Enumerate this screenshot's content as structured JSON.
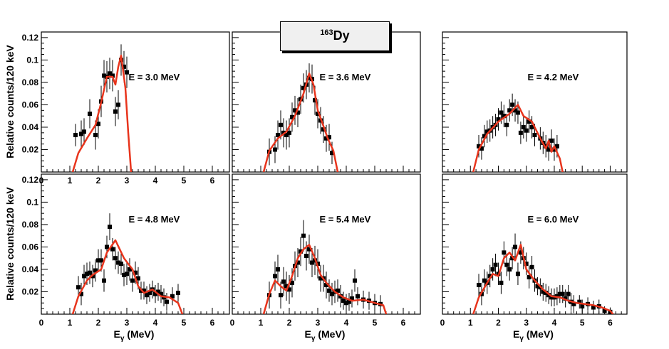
{
  "figure": {
    "nucleus": {
      "mass": "163",
      "symbol": "Dy"
    },
    "ylabel": "Relative counts/120 keV",
    "xlabel_main": "E",
    "xlabel_sub": "γ",
    "xlabel_unit": " (MeV)",
    "colors": {
      "model": "#e8341c",
      "data": "#000000",
      "frame": "#000000"
    }
  },
  "chart_data": [
    {
      "type": "scatter",
      "panel": "top-left",
      "label": "E = 3.0 MeV",
      "xlim": [
        0,
        6.6
      ],
      "ylim": [
        0,
        0.125
      ],
      "xticks": [
        "0",
        "1",
        "2",
        "3",
        "4",
        "5",
        "6"
      ],
      "yticks": [
        "0.02",
        "0.04",
        "0.06",
        "0.08",
        "0.1",
        "0.12"
      ],
      "points": [
        [
          1.2,
          0.033
        ],
        [
          1.4,
          0.034
        ],
        [
          1.5,
          0.036
        ],
        [
          1.7,
          0.052
        ],
        [
          1.9,
          0.033
        ],
        [
          2.0,
          0.043
        ],
        [
          2.1,
          0.063
        ],
        [
          2.2,
          0.086
        ],
        [
          2.3,
          0.085
        ],
        [
          2.4,
          0.088
        ],
        [
          2.5,
          0.086
        ],
        [
          2.6,
          0.054
        ],
        [
          2.7,
          0.06
        ],
        [
          2.8,
          0.1
        ],
        [
          2.9,
          0.094
        ],
        [
          3.0,
          0.089
        ]
      ],
      "errors": [
        0.01,
        0.012,
        0.012,
        0.013,
        0.013,
        0.013,
        0.014,
        0.014,
        0.014,
        0.014,
        0.014,
        0.013,
        0.013,
        0.014,
        0.014,
        0.014
      ],
      "model": [
        [
          1.1,
          0.0
        ],
        [
          1.3,
          0.017
        ],
        [
          1.6,
          0.03
        ],
        [
          1.9,
          0.042
        ],
        [
          2.1,
          0.062
        ],
        [
          2.3,
          0.085
        ],
        [
          2.5,
          0.085
        ],
        [
          2.6,
          0.078
        ],
        [
          2.7,
          0.094
        ],
        [
          2.8,
          0.104
        ],
        [
          2.95,
          0.075
        ],
        [
          3.05,
          0.035
        ],
        [
          3.15,
          0.0
        ]
      ]
    },
    {
      "type": "scatter",
      "panel": "top-middle",
      "label": "E = 3.6 MeV",
      "xlim": [
        0,
        6.6
      ],
      "ylim": [
        0,
        0.125
      ],
      "xticks": [],
      "yticks": [],
      "points": [
        [
          1.3,
          0.018
        ],
        [
          1.5,
          0.02
        ],
        [
          1.6,
          0.033
        ],
        [
          1.7,
          0.042
        ],
        [
          1.8,
          0.035
        ],
        [
          1.9,
          0.033
        ],
        [
          2.0,
          0.035
        ],
        [
          2.1,
          0.049
        ],
        [
          2.2,
          0.055
        ],
        [
          2.3,
          0.053
        ],
        [
          2.4,
          0.065
        ],
        [
          2.5,
          0.075
        ],
        [
          2.6,
          0.078
        ],
        [
          2.7,
          0.084
        ],
        [
          2.8,
          0.083
        ],
        [
          2.9,
          0.064
        ],
        [
          3.0,
          0.052
        ],
        [
          3.1,
          0.046
        ],
        [
          3.2,
          0.038
        ],
        [
          3.3,
          0.03
        ],
        [
          3.4,
          0.031
        ],
        [
          3.5,
          0.017
        ]
      ],
      "errors": [
        0.012,
        0.012,
        0.013,
        0.013,
        0.013,
        0.013,
        0.013,
        0.013,
        0.013,
        0.013,
        0.013,
        0.013,
        0.013,
        0.013,
        0.013,
        0.013,
        0.013,
        0.012,
        0.012,
        0.012,
        0.012,
        0.01
      ],
      "model": [
        [
          1.1,
          0.0
        ],
        [
          1.3,
          0.019
        ],
        [
          1.6,
          0.03
        ],
        [
          1.9,
          0.036
        ],
        [
          2.2,
          0.05
        ],
        [
          2.5,
          0.07
        ],
        [
          2.7,
          0.088
        ],
        [
          2.85,
          0.078
        ],
        [
          3.0,
          0.055
        ],
        [
          3.2,
          0.041
        ],
        [
          3.35,
          0.03
        ],
        [
          3.55,
          0.019
        ],
        [
          3.7,
          0.0
        ]
      ]
    },
    {
      "type": "scatter",
      "panel": "top-right",
      "label": "E = 4.2 MeV",
      "xlim": [
        0,
        6.6
      ],
      "ylim": [
        0,
        0.125
      ],
      "xticks": [],
      "yticks": [],
      "points": [
        [
          1.3,
          0.023
        ],
        [
          1.4,
          0.021
        ],
        [
          1.5,
          0.032
        ],
        [
          1.6,
          0.036
        ],
        [
          1.7,
          0.037
        ],
        [
          1.8,
          0.04
        ],
        [
          1.9,
          0.042
        ],
        [
          2.0,
          0.047
        ],
        [
          2.1,
          0.053
        ],
        [
          2.2,
          0.05
        ],
        [
          2.3,
          0.042
        ],
        [
          2.4,
          0.055
        ],
        [
          2.5,
          0.06
        ],
        [
          2.6,
          0.055
        ],
        [
          2.7,
          0.053
        ],
        [
          2.8,
          0.035
        ],
        [
          2.9,
          0.04
        ],
        [
          3.0,
          0.037
        ],
        [
          3.1,
          0.045
        ],
        [
          3.2,
          0.04
        ],
        [
          3.3,
          0.033
        ],
        [
          3.5,
          0.03
        ],
        [
          3.6,
          0.026
        ],
        [
          3.7,
          0.023
        ],
        [
          3.8,
          0.02
        ],
        [
          3.9,
          0.028
        ],
        [
          4.0,
          0.02
        ],
        [
          4.1,
          0.023
        ]
      ],
      "errors": [
        0.01,
        0.01,
        0.01,
        0.01,
        0.01,
        0.01,
        0.01,
        0.01,
        0.01,
        0.01,
        0.01,
        0.01,
        0.01,
        0.01,
        0.01,
        0.01,
        0.01,
        0.01,
        0.01,
        0.01,
        0.01,
        0.01,
        0.01,
        0.01,
        0.01,
        0.01,
        0.01,
        0.01
      ],
      "model": [
        [
          1.1,
          0.0
        ],
        [
          1.3,
          0.02
        ],
        [
          1.6,
          0.034
        ],
        [
          2.0,
          0.045
        ],
        [
          2.4,
          0.052
        ],
        [
          2.7,
          0.06
        ],
        [
          2.9,
          0.05
        ],
        [
          3.2,
          0.045
        ],
        [
          3.5,
          0.03
        ],
        [
          3.7,
          0.021
        ],
        [
          3.8,
          0.028
        ],
        [
          3.9,
          0.018
        ],
        [
          4.0,
          0.023
        ],
        [
          4.2,
          0.012
        ],
        [
          4.3,
          0.0
        ]
      ]
    },
    {
      "type": "scatter",
      "panel": "bottom-left",
      "label": "E = 4.8 MeV",
      "xlim": [
        0,
        6.6
      ],
      "ylim": [
        0,
        0.125
      ],
      "xticks": [
        "0",
        "1",
        "2",
        "3",
        "4",
        "5",
        "6"
      ],
      "yticks": [
        "0.02",
        "0.04",
        "0.06",
        "0.08",
        "0.1",
        "0.12"
      ],
      "points": [
        [
          1.3,
          0.024
        ],
        [
          1.4,
          0.018
        ],
        [
          1.5,
          0.034
        ],
        [
          1.6,
          0.036
        ],
        [
          1.7,
          0.037
        ],
        [
          1.8,
          0.034
        ],
        [
          1.9,
          0.039
        ],
        [
          2.0,
          0.048
        ],
        [
          2.1,
          0.048
        ],
        [
          2.2,
          0.03
        ],
        [
          2.3,
          0.06
        ],
        [
          2.4,
          0.078
        ],
        [
          2.5,
          0.058
        ],
        [
          2.6,
          0.05
        ],
        [
          2.7,
          0.046
        ],
        [
          2.8,
          0.045
        ],
        [
          2.9,
          0.035
        ],
        [
          3.0,
          0.036
        ],
        [
          3.1,
          0.04
        ],
        [
          3.2,
          0.03
        ],
        [
          3.3,
          0.037
        ],
        [
          3.4,
          0.032
        ],
        [
          3.5,
          0.021
        ],
        [
          3.6,
          0.021
        ],
        [
          3.7,
          0.017
        ],
        [
          3.8,
          0.019
        ],
        [
          3.9,
          0.022
        ],
        [
          4.0,
          0.018
        ],
        [
          4.1,
          0.02
        ],
        [
          4.2,
          0.018
        ],
        [
          4.3,
          0.015
        ],
        [
          4.4,
          0.011
        ],
        [
          4.6,
          0.016
        ],
        [
          4.8,
          0.019
        ]
      ],
      "errors": [
        0.01,
        0.01,
        0.01,
        0.01,
        0.01,
        0.01,
        0.01,
        0.01,
        0.01,
        0.01,
        0.01,
        0.012,
        0.01,
        0.01,
        0.01,
        0.01,
        0.01,
        0.01,
        0.01,
        0.01,
        0.01,
        0.01,
        0.008,
        0.008,
        0.008,
        0.008,
        0.008,
        0.008,
        0.008,
        0.008,
        0.008,
        0.008,
        0.008,
        0.008
      ],
      "model": [
        [
          1.1,
          0.0
        ],
        [
          1.3,
          0.016
        ],
        [
          1.6,
          0.03
        ],
        [
          1.8,
          0.035
        ],
        [
          2.1,
          0.04
        ],
        [
          2.3,
          0.055
        ],
        [
          2.6,
          0.066
        ],
        [
          2.9,
          0.05
        ],
        [
          3.2,
          0.04
        ],
        [
          3.4,
          0.025
        ],
        [
          3.6,
          0.019
        ],
        [
          3.9,
          0.022
        ],
        [
          4.2,
          0.016
        ],
        [
          4.5,
          0.015
        ],
        [
          4.8,
          0.01
        ],
        [
          4.95,
          0.0
        ]
      ]
    },
    {
      "type": "scatter",
      "panel": "bottom-middle",
      "label": "E = 5.4 MeV",
      "xlim": [
        0,
        6.6
      ],
      "ylim": [
        0,
        0.125
      ],
      "xticks": [
        "0",
        "1",
        "2",
        "3",
        "4",
        "5",
        "6"
      ],
      "yticks": [],
      "points": [
        [
          1.3,
          0.017
        ],
        [
          1.5,
          0.034
        ],
        [
          1.6,
          0.04
        ],
        [
          1.7,
          0.017
        ],
        [
          1.8,
          0.029
        ],
        [
          1.9,
          0.025
        ],
        [
          2.0,
          0.022
        ],
        [
          2.1,
          0.028
        ],
        [
          2.2,
          0.043
        ],
        [
          2.3,
          0.046
        ],
        [
          2.4,
          0.056
        ],
        [
          2.5,
          0.07
        ],
        [
          2.6,
          0.052
        ],
        [
          2.7,
          0.058
        ],
        [
          2.8,
          0.046
        ],
        [
          2.9,
          0.048
        ],
        [
          3.0,
          0.045
        ],
        [
          3.1,
          0.032
        ],
        [
          3.2,
          0.032
        ],
        [
          3.3,
          0.026
        ],
        [
          3.4,
          0.021
        ],
        [
          3.5,
          0.018
        ],
        [
          3.6,
          0.02
        ],
        [
          3.7,
          0.021
        ],
        [
          3.8,
          0.016
        ],
        [
          3.9,
          0.012
        ],
        [
          4.0,
          0.01
        ],
        [
          4.1,
          0.011
        ],
        [
          4.2,
          0.014
        ],
        [
          4.3,
          0.03
        ],
        [
          4.4,
          0.016
        ],
        [
          4.6,
          0.013
        ],
        [
          4.8,
          0.012
        ],
        [
          5.0,
          0.01
        ],
        [
          5.2,
          0.009
        ]
      ],
      "errors": [
        0.012,
        0.013,
        0.013,
        0.012,
        0.013,
        0.013,
        0.013,
        0.013,
        0.013,
        0.013,
        0.013,
        0.014,
        0.013,
        0.013,
        0.013,
        0.013,
        0.013,
        0.012,
        0.012,
        0.012,
        0.01,
        0.01,
        0.01,
        0.01,
        0.01,
        0.008,
        0.008,
        0.008,
        0.008,
        0.01,
        0.008,
        0.008,
        0.008,
        0.008,
        0.008
      ],
      "model": [
        [
          1.1,
          0.0
        ],
        [
          1.3,
          0.018
        ],
        [
          1.5,
          0.03
        ],
        [
          1.7,
          0.025
        ],
        [
          1.9,
          0.021
        ],
        [
          2.1,
          0.034
        ],
        [
          2.3,
          0.05
        ],
        [
          2.5,
          0.058
        ],
        [
          2.7,
          0.062
        ],
        [
          2.9,
          0.05
        ],
        [
          3.1,
          0.035
        ],
        [
          3.3,
          0.028
        ],
        [
          3.6,
          0.02
        ],
        [
          3.9,
          0.015
        ],
        [
          4.2,
          0.012
        ],
        [
          4.6,
          0.013
        ],
        [
          5.0,
          0.01
        ],
        [
          5.3,
          0.008
        ],
        [
          5.4,
          0.0
        ]
      ]
    },
    {
      "type": "scatter",
      "panel": "bottom-right",
      "label": "E = 6.0 MeV",
      "xlim": [
        0,
        6.6
      ],
      "ylim": [
        0,
        0.125
      ],
      "xticks": [
        "0",
        "1",
        "2",
        "3",
        "4",
        "5",
        "6"
      ],
      "yticks": [],
      "points": [
        [
          1.3,
          0.026
        ],
        [
          1.4,
          0.018
        ],
        [
          1.5,
          0.03
        ],
        [
          1.6,
          0.028
        ],
        [
          1.7,
          0.034
        ],
        [
          1.8,
          0.04
        ],
        [
          1.9,
          0.044
        ],
        [
          2.0,
          0.036
        ],
        [
          2.1,
          0.028
        ],
        [
          2.2,
          0.055
        ],
        [
          2.3,
          0.044
        ],
        [
          2.4,
          0.04
        ],
        [
          2.5,
          0.05
        ],
        [
          2.6,
          0.06
        ],
        [
          2.7,
          0.036
        ],
        [
          2.8,
          0.055
        ],
        [
          2.9,
          0.05
        ],
        [
          3.0,
          0.045
        ],
        [
          3.1,
          0.033
        ],
        [
          3.2,
          0.042
        ],
        [
          3.3,
          0.03
        ],
        [
          3.4,
          0.025
        ],
        [
          3.5,
          0.024
        ],
        [
          3.6,
          0.02
        ],
        [
          3.7,
          0.019
        ],
        [
          3.8,
          0.017
        ],
        [
          3.9,
          0.015
        ],
        [
          4.0,
          0.015
        ],
        [
          4.1,
          0.016
        ],
        [
          4.2,
          0.018
        ],
        [
          4.3,
          0.018
        ],
        [
          4.4,
          0.014
        ],
        [
          4.5,
          0.018
        ],
        [
          4.6,
          0.011
        ],
        [
          4.7,
          0.009
        ],
        [
          4.9,
          0.011
        ],
        [
          5.0,
          0.007
        ],
        [
          5.2,
          0.009
        ],
        [
          5.4,
          0.006
        ],
        [
          5.6,
          0.007
        ],
        [
          5.8,
          0.003
        ],
        [
          6.0,
          0.002
        ]
      ],
      "errors": [
        0.01,
        0.01,
        0.01,
        0.01,
        0.01,
        0.01,
        0.01,
        0.01,
        0.01,
        0.01,
        0.01,
        0.01,
        0.01,
        0.012,
        0.01,
        0.01,
        0.01,
        0.01,
        0.01,
        0.01,
        0.01,
        0.008,
        0.008,
        0.008,
        0.008,
        0.008,
        0.008,
        0.008,
        0.008,
        0.008,
        0.008,
        0.008,
        0.008,
        0.008,
        0.008,
        0.006,
        0.006,
        0.006,
        0.006,
        0.006,
        0.004,
        0.004
      ],
      "model": [
        [
          1.1,
          0.0
        ],
        [
          1.3,
          0.015
        ],
        [
          1.6,
          0.028
        ],
        [
          1.8,
          0.036
        ],
        [
          2.0,
          0.034
        ],
        [
          2.2,
          0.05
        ],
        [
          2.4,
          0.055
        ],
        [
          2.6,
          0.048
        ],
        [
          2.8,
          0.062
        ],
        [
          3.0,
          0.04
        ],
        [
          3.3,
          0.03
        ],
        [
          3.6,
          0.022
        ],
        [
          3.9,
          0.016
        ],
        [
          4.2,
          0.015
        ],
        [
          4.5,
          0.012
        ],
        [
          4.8,
          0.01
        ],
        [
          5.1,
          0.009
        ],
        [
          5.4,
          0.008
        ],
        [
          5.7,
          0.006
        ],
        [
          6.0,
          0.003
        ],
        [
          6.1,
          0.0
        ]
      ]
    }
  ]
}
